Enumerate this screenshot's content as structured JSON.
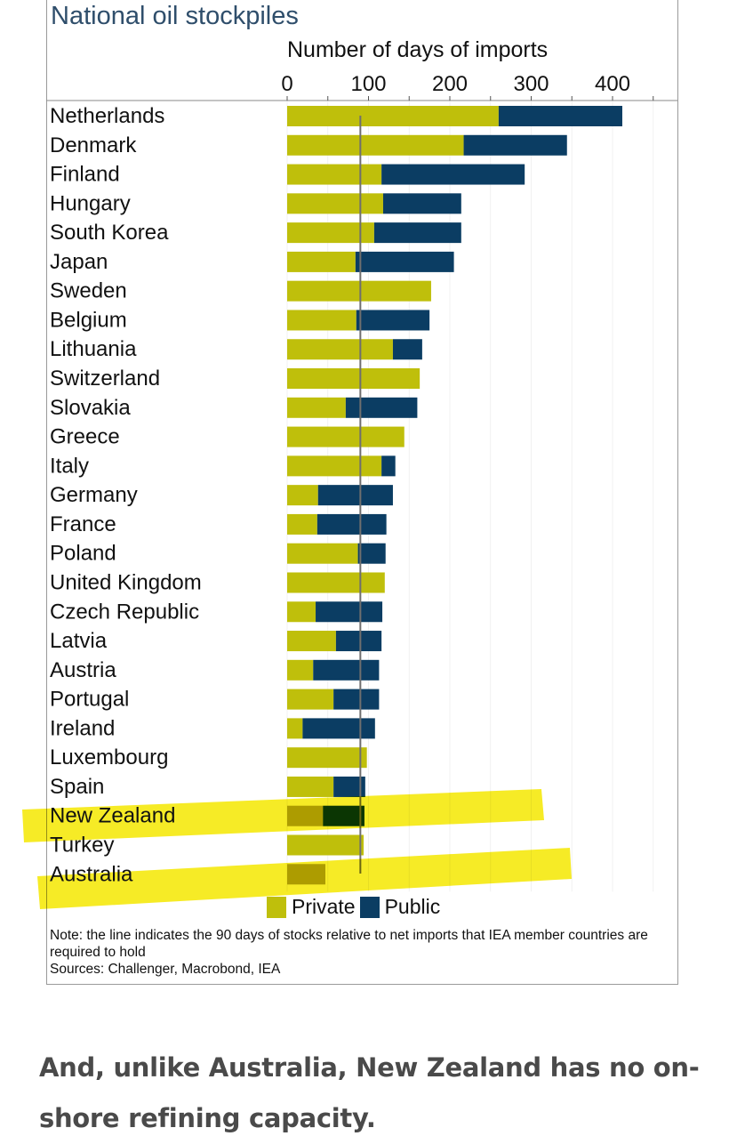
{
  "chart_data": {
    "type": "bar",
    "orientation": "horizontal",
    "stacked": true,
    "title": "National oil stockpiles",
    "xlabel": "Number of days of imports",
    "ylabel": "",
    "xlim": [
      0,
      450
    ],
    "x_ticks": [
      0,
      100,
      200,
      300,
      400
    ],
    "x_minor_ticks": [
      50,
      150,
      250,
      350,
      450
    ],
    "grid": true,
    "categories": [
      "Netherlands",
      "Denmark",
      "Finland",
      "Hungary",
      "South Korea",
      "Japan",
      "Sweden",
      "Belgium",
      "Lithuania",
      "Switzerland",
      "Slovakia",
      "Greece",
      "Italy",
      "Germany",
      "France",
      "Poland",
      "United Kingdom",
      "Czech Republic",
      "Latvia",
      "Austria",
      "Portugal",
      "Ireland",
      "Luxembourg",
      "Spain",
      "New Zealand",
      "Turkey",
      "Australia"
    ],
    "series": [
      {
        "name": "Private",
        "color": "#bfbf0b",
        "values": [
          260,
          217,
          116,
          118,
          107,
          84,
          177,
          85,
          130,
          163,
          72,
          144,
          116,
          38,
          37,
          87,
          120,
          35,
          60,
          32,
          57,
          19,
          98,
          57,
          44,
          94,
          47
        ]
      },
      {
        "name": "Public",
        "color": "#0b3d63",
        "values": [
          152,
          127,
          176,
          96,
          107,
          121,
          0,
          90,
          36,
          0,
          88,
          0,
          17,
          92,
          85,
          34,
          0,
          82,
          56,
          81,
          56,
          89,
          0,
          39,
          51,
          0,
          0
        ]
      }
    ],
    "reference_line": {
      "value": 90,
      "label": "90 days IEA requirement"
    },
    "highlighted_categories": [
      "New Zealand",
      "Australia"
    ],
    "highlight_color": "#f5e800",
    "legend": {
      "placement": "bottom",
      "entries": [
        "Private",
        "Public"
      ]
    },
    "note": "Note: the line indicates the 90 days of stocks relative to net imports that IEA member countries are required to hold",
    "sources": "Sources: Challenger, Macrobond, IEA"
  },
  "caption": "And, unlike Australia, New Zealand has no on-shore refining capacity."
}
